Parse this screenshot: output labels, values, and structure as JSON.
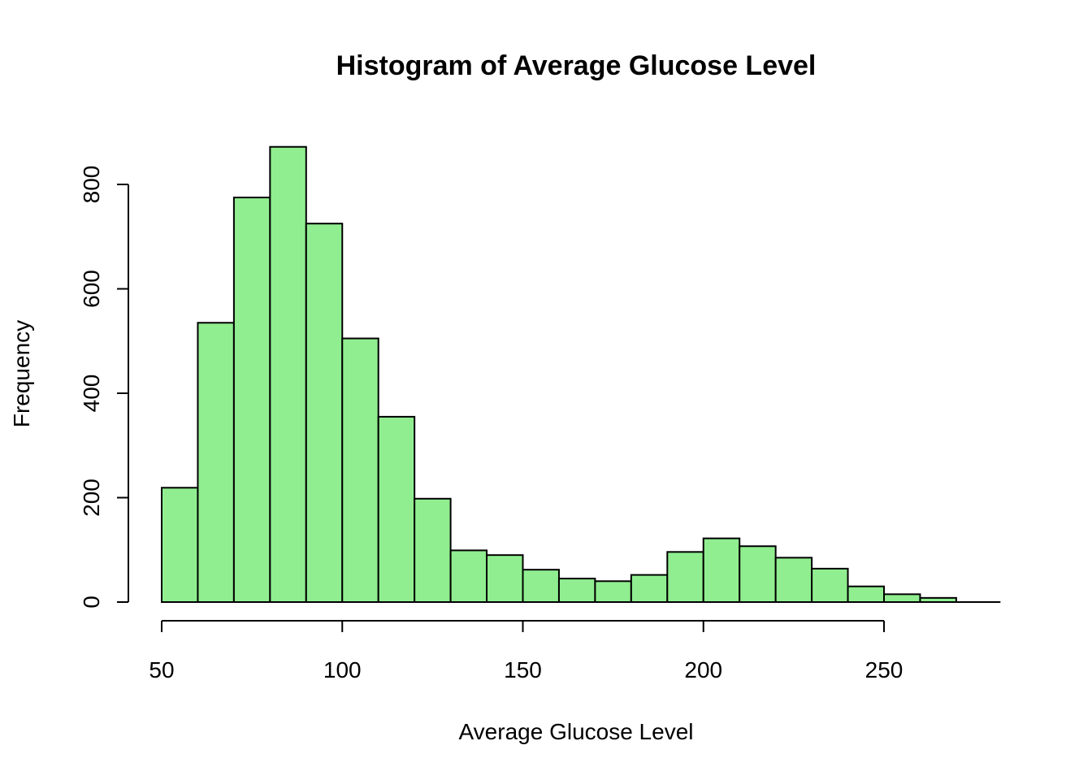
{
  "chart_data": {
    "type": "bar",
    "title": "Histogram of Average Glucose Level",
    "xlabel": "Average Glucose Level",
    "ylabel": "Frequency",
    "bin_edges": [
      50,
      60,
      70,
      80,
      90,
      100,
      110,
      120,
      130,
      140,
      150,
      160,
      170,
      180,
      190,
      200,
      210,
      220,
      230,
      240,
      250,
      260,
      270
    ],
    "values": [
      219,
      535,
      775,
      872,
      725,
      505,
      355,
      198,
      99,
      90,
      62,
      45,
      40,
      52,
      96,
      122,
      107,
      85,
      64,
      30,
      15,
      8
    ],
    "x_ticks": [
      50,
      100,
      150,
      200,
      250
    ],
    "x_tick_labels": [
      "50",
      "100",
      "150",
      "200",
      "250"
    ],
    "y_ticks": [
      0,
      200,
      400,
      600,
      800
    ],
    "y_tick_labels": [
      "0",
      "200",
      "400",
      "600",
      "800"
    ],
    "xlim": [
      50,
      280
    ],
    "ylim": [
      0,
      872
    ],
    "grid": false,
    "bar_color": "#90EE90",
    "edge_color": "#000000"
  }
}
